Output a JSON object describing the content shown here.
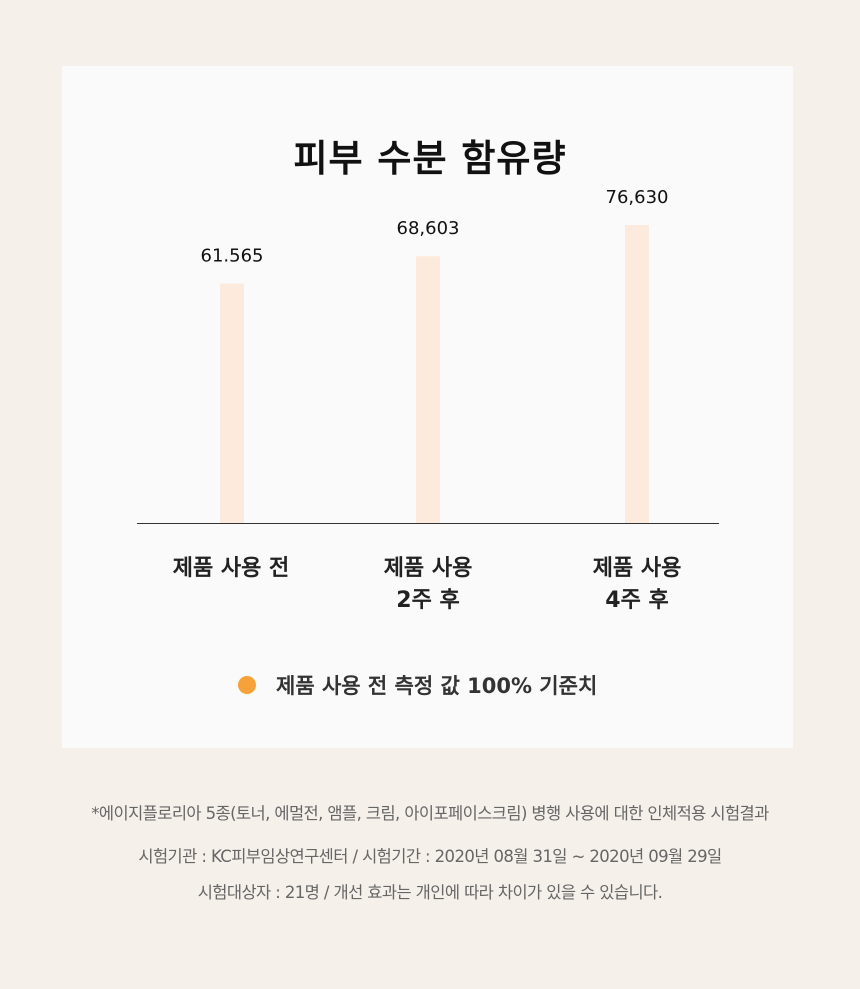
{
  "chart_data": {
    "type": "bar",
    "title": "피부 수분 함유량",
    "categories": [
      "제품 사용 전",
      "제품 사용\n2주 후",
      "제품 사용\n4주 후"
    ],
    "values": [
      61565,
      68603,
      76630
    ],
    "value_labels": [
      "61.565",
      "68,603",
      "76,630"
    ],
    "xlabel": "",
    "ylabel": "",
    "ylim": [
      0,
      90000
    ],
    "grid": false,
    "bar_color": "#fcebdc",
    "legend": {
      "label": "제품 사용 전 측정 값 100% 기준치",
      "color": "#f7a13a",
      "placement": "bottom"
    }
  },
  "footnotes": [
    "*에이지플로리아 5종(토너, 에멀전, 앰플, 크림, 아이포페이스크림) 병행 사용에 대한 인체적용 시험결과",
    "시험기관 : KC피부임상연구센터 / 시험기간 : 2020년 08월 31일 ~ 2020년 09월 29일",
    "시험대상자 : 21명 / 개선 효과는 개인에 따라 차이가 있을 수 있습니다."
  ]
}
